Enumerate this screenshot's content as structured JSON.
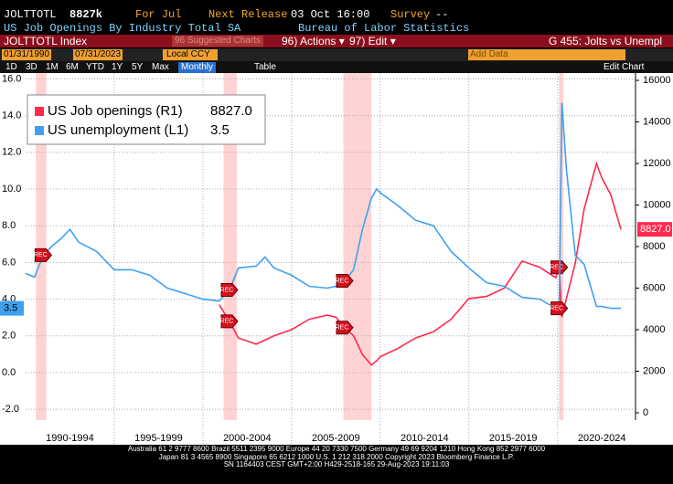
{
  "terminal": {
    "ticker": "JOLTTOTL",
    "last": "8827k",
    "period": "For Jul",
    "next_release_label": "Next Release",
    "next_release": "03 Oct 16:00",
    "survey_label": "Survey",
    "survey": "--",
    "description": "US Job Openings By Industry Total SA",
    "source": "Bureau of Labor Statistics",
    "security": "JOLTTOTL Index",
    "suggested": "96 Suggested Charts",
    "actions": "96) Actions ▾",
    "edit": "97) Edit ▾",
    "chart_id": "G 455: Jolts vs Unempl",
    "start_date": "01/31/1990",
    "end_date": "07/31/2023",
    "currency": "Local CCY",
    "ranges": [
      "1D",
      "3D",
      "1M",
      "6M",
      "YTD",
      "1Y",
      "5Y",
      "Max"
    ],
    "frequency": "Monthly",
    "table": "Table",
    "add_data": "Add Data",
    "edit_chart": "Edit Chart",
    "footer": [
      "Australia 61 2 9777 8600 Brazil 5511 2395 9000 Europe 44 20 7330 7500 Germany 49 69 9204 1210 Hong Kong 852 2977 6000",
      "Japan 81 3 4565 8900      Singapore 65 6212 1000      U.S. 1 212 318 2000      Copyright 2023 Bloomberg Finance L.P.",
      "SN 1164403 CEST GMT+2:00 H429-2518-165 29-Aug-2023 19:11:03"
    ]
  },
  "chart_data": {
    "type": "line",
    "x": [
      1990,
      1990.5,
      1991,
      1991.5,
      1992,
      1992.5,
      1993,
      1994,
      1995,
      1996,
      1997,
      1998,
      1999,
      2000,
      2000.92,
      2001.5,
      2002,
      2003,
      2003.5,
      2004,
      2005,
      2006,
      2007,
      2007.5,
      2008,
      2008.5,
      2009,
      2009.5,
      2009.8,
      2010,
      2011,
      2012,
      2013,
      2014,
      2015,
      2016,
      2017,
      2018,
      2019,
      2019.9,
      2020.1,
      2020.25,
      2020.5,
      2021,
      2021.5,
      2022.2,
      2022.5,
      2023,
      2023.58
    ],
    "series": [
      {
        "name": "US Job openings (R1)",
        "color": "#ff2a4f",
        "axis": "y2",
        "last_label": "8827.0",
        "values": [
          null,
          null,
          null,
          null,
          null,
          null,
          null,
          null,
          null,
          null,
          null,
          null,
          null,
          null,
          5200,
          4400,
          3600,
          3300,
          3500,
          3700,
          4000,
          4500,
          4700,
          4600,
          4100,
          3700,
          2800,
          2300,
          2500,
          2700,
          3100,
          3600,
          3900,
          4500,
          5500,
          5600,
          6000,
          7300,
          7000,
          6500,
          7000,
          4600,
          5500,
          7200,
          9800,
          12000,
          11300,
          10500,
          8827
        ]
      },
      {
        "name": "US unemployment (L1)",
        "color": "#3fa0f0",
        "values": [
          5.4,
          5.2,
          6.4,
          6.9,
          7.3,
          7.8,
          7.1,
          6.6,
          5.6,
          5.6,
          5.3,
          4.6,
          4.3,
          4.0,
          3.9,
          4.5,
          5.7,
          5.8,
          6.3,
          5.7,
          5.3,
          4.7,
          4.6,
          4.7,
          5.0,
          5.6,
          7.8,
          9.5,
          10.0,
          9.8,
          9.1,
          8.3,
          8.0,
          6.6,
          5.7,
          4.9,
          4.7,
          4.1,
          4.0,
          3.5,
          3.5,
          14.7,
          11.1,
          6.4,
          5.9,
          3.6,
          3.6,
          3.5,
          3.5
        ]
      }
    ],
    "xlim": [
      1990,
      2024.4
    ],
    "xticks": [
      {
        "value": 1992.5,
        "label": "1990-1994"
      },
      {
        "value": 1997.5,
        "label": "1995-1999"
      },
      {
        "value": 2002.5,
        "label": "2000-2004"
      },
      {
        "value": 2007.5,
        "label": "2005-2009"
      },
      {
        "value": 2012.5,
        "label": "2010-2014"
      },
      {
        "value": 2017.5,
        "label": "2015-2019"
      },
      {
        "value": 2022.5,
        "label": "2020-2024"
      }
    ],
    "xgrid_lines": [
      1995,
      2000,
      2005,
      2010,
      2015,
      2020
    ],
    "ylim": [
      -2.59,
      16.32
    ],
    "yticks": [
      {
        "value": -2,
        "label": "-2.0"
      },
      {
        "value": 0,
        "label": "0.0"
      },
      {
        "value": 2,
        "label": "2.0"
      },
      {
        "value": 4,
        "label": "4.0"
      },
      {
        "value": 6,
        "label": "6.0"
      },
      {
        "value": 8,
        "label": "8.0"
      },
      {
        "value": 10,
        "label": "10.0"
      },
      {
        "value": 12,
        "label": "12.0"
      },
      {
        "value": 14,
        "label": "14.0"
      },
      {
        "value": 16,
        "label": "16.0"
      }
    ],
    "y2lim": [
      -352,
      16352
    ],
    "y2ticks": [
      0,
      2000,
      4000,
      6000,
      8000,
      10000,
      12000,
      14000,
      16000
    ],
    "recessions": [
      [
        1990.58,
        1991.17
      ],
      [
        2001.17,
        2001.92
      ],
      [
        2007.92,
        2009.5
      ],
      [
        2020.08,
        2020.33
      ]
    ],
    "recession_label": "REC",
    "grid": true,
    "legend": "upper left"
  }
}
